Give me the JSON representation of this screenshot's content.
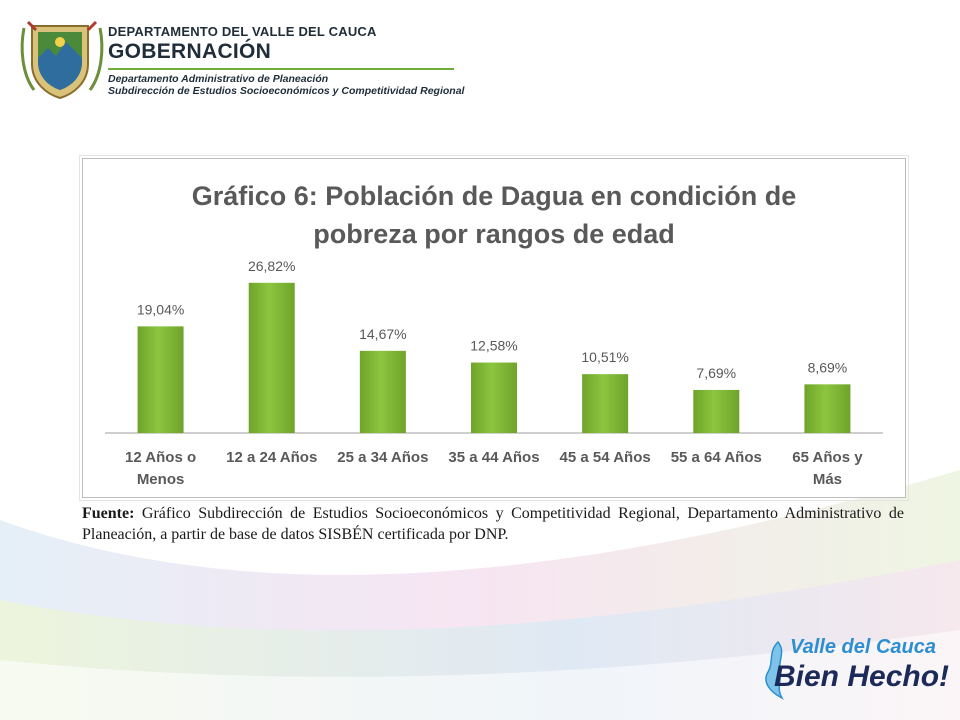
{
  "header": {
    "department": "DEPARTAMENTO DEL VALLE DEL CAUCA",
    "gobernacion": "GOBERNACIÓN",
    "office": "Departamento  Administrativo de Planeación",
    "subdivision": "Subdirección de Estudios Socioeconómicos y Competitividad Regional"
  },
  "chart_data": {
    "type": "bar",
    "title_line1": "Gráfico 6: Población de Dagua en condición de",
    "title_line2": "pobreza por rangos de edad",
    "categories": [
      [
        "12 Años o",
        "Menos"
      ],
      [
        "12 a 24 Años"
      ],
      [
        "25 a 34 Años"
      ],
      [
        "35 a 44 Años"
      ],
      [
        "45 a 54 Años"
      ],
      [
        "55 a 64 Años"
      ],
      [
        "65 Años y",
        "Más"
      ]
    ],
    "values": [
      19.04,
      26.82,
      14.67,
      12.58,
      10.51,
      7.69,
      8.69
    ],
    "value_labels": [
      "19,04%",
      "26,82%",
      "14,67%",
      "12,58%",
      "10,51%",
      "7,69%",
      "8,69%"
    ],
    "ylim": [
      0,
      30
    ],
    "bar_color": "#8cc63f",
    "bar_color_dark": "#6fa32b",
    "grid": false,
    "legend": "none"
  },
  "source": {
    "label": "Fuente:",
    "text": " Gráfico Subdirección de Estudios Socioeconómicos y Competitividad Regional, Departamento Administrativo de Planeación, a partir de base de datos SISBÉN certificada por DNP."
  },
  "brand": {
    "line1": "Valle del Cauca",
    "line2": "Bien Hecho!"
  },
  "colors": {
    "accent_green": "#6fae3a",
    "swoosh_blue": "#cfe3f2",
    "swoosh_pink": "#f3d6e6",
    "swoosh_green": "#e3efc9"
  }
}
